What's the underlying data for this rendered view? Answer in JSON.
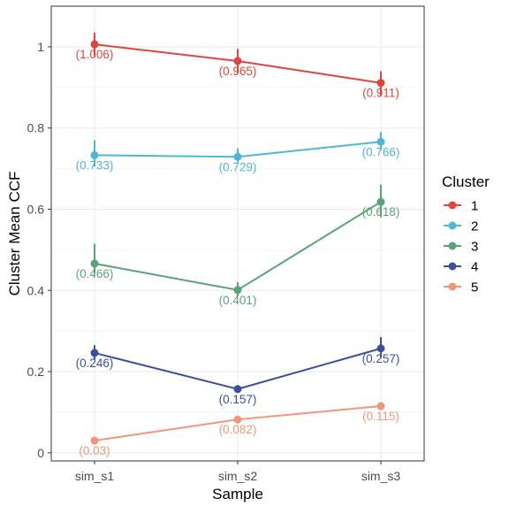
{
  "chart_data": {
    "type": "line",
    "xlabel": "Sample",
    "ylabel": "Cluster Mean CCF",
    "categories": [
      "sim_s1",
      "sim_s2",
      "sim_s3"
    ],
    "ylim": [
      -0.02,
      1.1
    ],
    "yticks": [
      0,
      0.2,
      0.4,
      0.6,
      0.8,
      1
    ],
    "ytick_labels": [
      "0",
      "0.2",
      "0.4",
      "0.6",
      "0.8",
      "1"
    ],
    "grid": true,
    "legend": {
      "title": "Cluster",
      "position": "right"
    },
    "series": [
      {
        "name": "1",
        "color": "#dc473d",
        "values": [
          1.006,
          0.965,
          0.911
        ],
        "labels": [
          "(1.006)",
          "(0.965)",
          "(0.911)"
        ],
        "error_low": [
          0.976,
          0.935,
          0.88
        ],
        "error_high": [
          1.035,
          0.995,
          0.94
        ]
      },
      {
        "name": "2",
        "color": "#4fb7d5",
        "values": [
          0.733,
          0.729,
          0.766
        ],
        "labels": [
          "(0.733)",
          "(0.729)",
          "(0.766)"
        ],
        "error_low": [
          0.705,
          0.715,
          0.745
        ],
        "error_high": [
          0.77,
          0.75,
          0.79
        ]
      },
      {
        "name": "3",
        "color": "#5aa377",
        "values": [
          0.466,
          0.401,
          0.618
        ],
        "labels": [
          "(0.466)",
          "(0.401)",
          "(0.618)"
        ],
        "error_low": [
          0.44,
          0.385,
          0.58
        ],
        "error_high": [
          0.515,
          0.42,
          0.66
        ]
      },
      {
        "name": "4",
        "color": "#3b4f9d",
        "values": [
          0.246,
          0.157,
          0.257
        ],
        "labels": [
          "(0.246)",
          "(0.157)",
          "(0.257)"
        ],
        "error_low": [
          0.23,
          0.15,
          0.235
        ],
        "error_high": [
          0.265,
          0.165,
          0.285
        ]
      },
      {
        "name": "5",
        "color": "#f0957a",
        "values": [
          0.03,
          0.082,
          0.115
        ],
        "labels": [
          "(0.03)",
          "(0.082)",
          "(0.115)"
        ],
        "error_low": [
          0.025,
          0.075,
          0.105
        ],
        "error_high": [
          0.035,
          0.09,
          0.125
        ]
      }
    ]
  }
}
